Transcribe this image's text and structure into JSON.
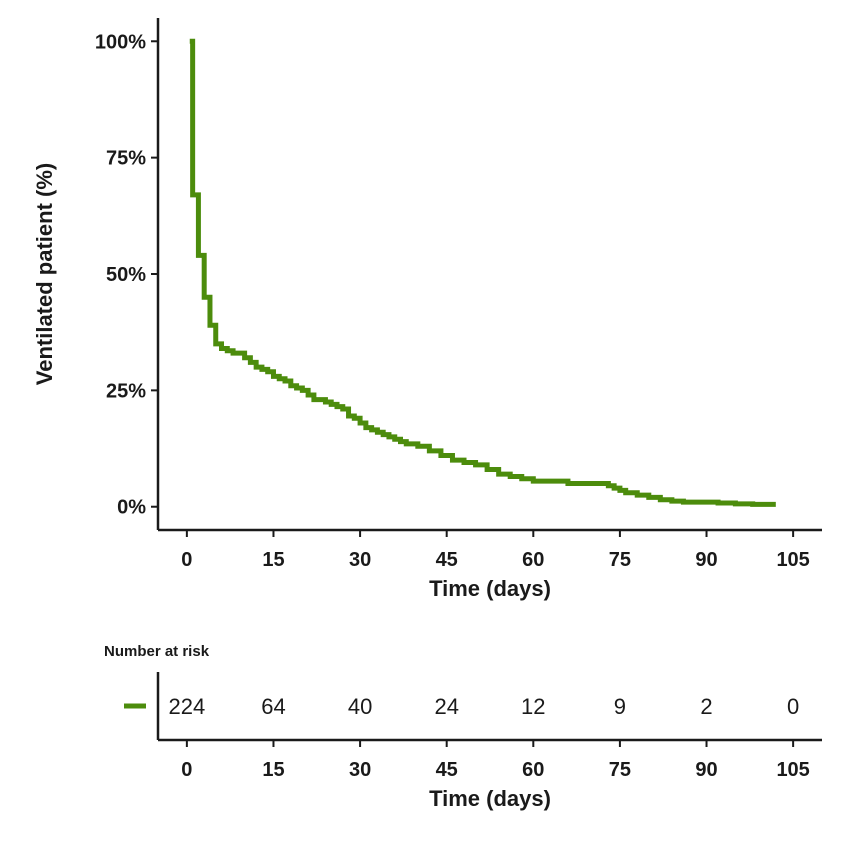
{
  "chart_data": [
    {
      "type": "line",
      "subtype": "kaplan-meier-step",
      "ylabel": "Ventilated patient (%)",
      "xlabel": "Time (days)",
      "xlim": [
        -5,
        110
      ],
      "ylim": [
        -5,
        105
      ],
      "x_ticks": [
        0,
        15,
        30,
        45,
        60,
        75,
        90,
        105
      ],
      "y_ticks": [
        0,
        25,
        50,
        75,
        100
      ],
      "y_tick_labels": [
        "0%",
        "25%",
        "50%",
        "75%",
        "100%"
      ],
      "grid": false,
      "series": [
        {
          "color": "#4c8c0c",
          "x": [
            0.5,
            1,
            2,
            3,
            4,
            5,
            6,
            7,
            8,
            10,
            11,
            12,
            13,
            14,
            15,
            16,
            17,
            18,
            19,
            20,
            21,
            22,
            24,
            25,
            26,
            27,
            28,
            29,
            30,
            31,
            32,
            33,
            34,
            35,
            36,
            37,
            38,
            40,
            42,
            44,
            46,
            48,
            50,
            52,
            54,
            56,
            58,
            60,
            62,
            64,
            66,
            68,
            70,
            72,
            73,
            74,
            75,
            76,
            78,
            80,
            82,
            84,
            86,
            88,
            90,
            92,
            95,
            98,
            102
          ],
          "y": [
            100,
            67,
            54,
            45,
            39,
            35,
            34,
            33.5,
            33,
            32,
            31,
            30,
            29.5,
            29,
            28,
            27.5,
            27,
            26,
            25.5,
            25,
            24,
            23,
            22.5,
            22,
            21.5,
            21,
            19.5,
            19,
            18,
            17,
            16.5,
            16,
            15.5,
            15,
            14.5,
            14,
            13.5,
            13,
            12,
            11,
            10,
            9.5,
            9,
            8,
            7,
            6.5,
            6,
            5.5,
            5.5,
            5.5,
            5,
            5,
            5,
            5,
            4.5,
            4,
            3.5,
            3,
            2.5,
            2,
            1.5,
            1.2,
            1,
            1,
            1,
            0.8,
            0.6,
            0.5,
            0.5
          ]
        }
      ]
    },
    {
      "type": "table",
      "title": "Number at risk",
      "xlabel": "Time (days)",
      "x_ticks": [
        0,
        15,
        30,
        45,
        60,
        75,
        90,
        105
      ],
      "values": [
        224,
        64,
        40,
        24,
        12,
        9,
        2,
        0
      ],
      "legend_color": "#4c8c0c"
    }
  ]
}
